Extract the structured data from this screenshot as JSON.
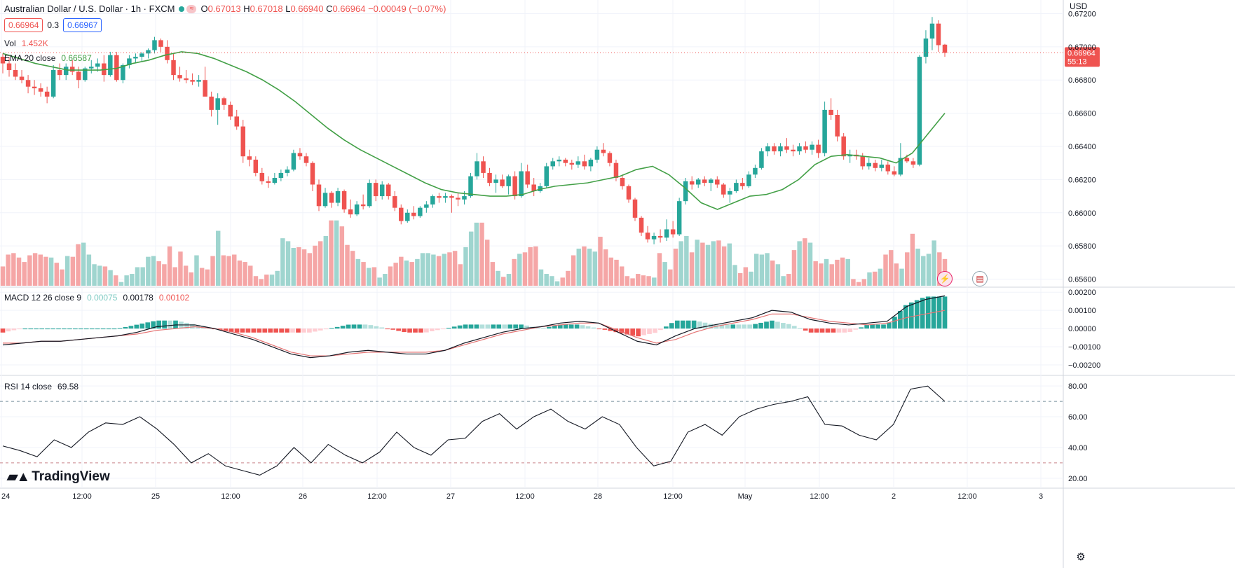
{
  "header": {
    "symbol": "Australian Dollar / U.S. Dollar · 1h · FXCM",
    "o_label": "O",
    "o_value": "0.67013",
    "h_label": "H",
    "h_value": "0.67018",
    "l_label": "L",
    "l_value": "0.66940",
    "c_label": "C",
    "c_value": "0.66964",
    "change": "−0.00049 (−0.07%)",
    "bid": "0.66964",
    "spread": "0.3",
    "ask": "0.66967"
  },
  "indicators": {
    "vol_label": "Vol",
    "vol_value": "1.452K",
    "ema_label": "EMA 20 close",
    "ema_value": "0.66587",
    "macd_label": "MACD 12 26 close 9",
    "macd_hist": "0.00075",
    "macd_line": "0.00178",
    "macd_signal": "0.00102",
    "rsi_label": "RSI 14 close",
    "rsi_value": "69.58"
  },
  "axis": {
    "unit": "USD",
    "current_price": "0.66964",
    "countdown": "55:13",
    "price_ticks": [
      "0.67200",
      "0.67000",
      "0.66800",
      "0.66600",
      "0.66400",
      "0.66200",
      "0.66000",
      "0.65800",
      "0.65600"
    ],
    "macd_ticks": [
      "0.00200",
      "0.00100",
      "0.00000",
      "−0.00100",
      "−0.00200"
    ],
    "rsi_ticks": [
      "80.00",
      "60.00",
      "40.00",
      "20.00"
    ],
    "time_ticks": [
      "24",
      "12:00",
      "25",
      "12:00",
      "26",
      "12:00",
      "27",
      "12:00",
      "28",
      "12:00",
      "May",
      "12:00",
      "2",
      "12:00",
      "3"
    ]
  },
  "brand": {
    "name": "TradingView"
  },
  "colors": {
    "up": "#26a69a",
    "down": "#ef5350",
    "ema": "#43a047",
    "macd": "#131722",
    "signal": "#e57373"
  },
  "chart_data": {
    "type": "candlestick",
    "title": "Australian Dollar / U.S. Dollar · 1h · FXCM",
    "ylabel": "USD",
    "ylim": [
      0.6556,
      0.6724
    ],
    "candles_ohlc": [
      [
        0.6694,
        0.6696,
        0.6684,
        0.669
      ],
      [
        0.669,
        0.6694,
        0.6682,
        0.6686
      ],
      [
        0.6686,
        0.669,
        0.668,
        0.6682
      ],
      [
        0.6682,
        0.6686,
        0.6678,
        0.668
      ],
      [
        0.668,
        0.6683,
        0.6672,
        0.6676
      ],
      [
        0.6676,
        0.668,
        0.6671,
        0.6675
      ],
      [
        0.6675,
        0.6678,
        0.667,
        0.6673
      ],
      [
        0.6673,
        0.6676,
        0.6666,
        0.667
      ],
      [
        0.667,
        0.6689,
        0.6669,
        0.6686
      ],
      [
        0.6686,
        0.669,
        0.668,
        0.6683
      ],
      [
        0.6683,
        0.669,
        0.668,
        0.6688
      ],
      [
        0.6688,
        0.6692,
        0.6683,
        0.6685
      ],
      [
        0.6685,
        0.6688,
        0.6675,
        0.668
      ],
      [
        0.668,
        0.6688,
        0.6679,
        0.6687
      ],
      [
        0.6687,
        0.6692,
        0.6684,
        0.6688
      ],
      [
        0.6688,
        0.6693,
        0.6685,
        0.669
      ],
      [
        0.669,
        0.6695,
        0.6679,
        0.6683
      ],
      [
        0.6683,
        0.6697,
        0.6682,
        0.6695
      ],
      [
        0.6695,
        0.6697,
        0.6679,
        0.668
      ],
      [
        0.668,
        0.669,
        0.6678,
        0.6689
      ],
      [
        0.6689,
        0.6695,
        0.6687,
        0.6693
      ],
      [
        0.6693,
        0.6696,
        0.669,
        0.6694
      ],
      [
        0.6694,
        0.6697,
        0.6691,
        0.6696
      ],
      [
        0.6696,
        0.6699,
        0.6693,
        0.6698
      ],
      [
        0.6698,
        0.6706,
        0.6696,
        0.6704
      ],
      [
        0.6704,
        0.6705,
        0.6697,
        0.67
      ],
      [
        0.67,
        0.6704,
        0.669,
        0.6692
      ],
      [
        0.6692,
        0.6696,
        0.668,
        0.6683
      ],
      [
        0.6683,
        0.6688,
        0.6679,
        0.6681
      ],
      [
        0.6681,
        0.6686,
        0.6678,
        0.668
      ],
      [
        0.668,
        0.6684,
        0.6677,
        0.6679
      ],
      [
        0.6679,
        0.6683,
        0.6676,
        0.668
      ],
      [
        0.668,
        0.6688,
        0.6678,
        0.667
      ],
      [
        0.667,
        0.6673,
        0.6658,
        0.6662
      ],
      [
        0.6662,
        0.6672,
        0.6653,
        0.6669
      ],
      [
        0.6669,
        0.667,
        0.6662,
        0.6665
      ],
      [
        0.6665,
        0.6667,
        0.6656,
        0.6658
      ],
      [
        0.6658,
        0.6662,
        0.665,
        0.6652
      ],
      [
        0.6652,
        0.6656,
        0.663,
        0.6634
      ],
      [
        0.6634,
        0.6638,
        0.6628,
        0.6632
      ],
      [
        0.6632,
        0.6634,
        0.6622,
        0.6624
      ],
      [
        0.6624,
        0.6627,
        0.6617,
        0.6619
      ],
      [
        0.6619,
        0.6622,
        0.6615,
        0.6618
      ],
      [
        0.6618,
        0.6624,
        0.6617,
        0.6621
      ],
      [
        0.6621,
        0.6626,
        0.6619,
        0.6624
      ],
      [
        0.6624,
        0.6628,
        0.6622,
        0.6626
      ],
      [
        0.6626,
        0.6638,
        0.6625,
        0.6636
      ],
      [
        0.6636,
        0.6639,
        0.6632,
        0.6634
      ],
      [
        0.6634,
        0.6636,
        0.6628,
        0.663
      ],
      [
        0.663,
        0.6631,
        0.6613,
        0.6617
      ],
      [
        0.6617,
        0.662,
        0.6601,
        0.6604
      ],
      [
        0.6604,
        0.6615,
        0.6603,
        0.6612
      ],
      [
        0.6612,
        0.6613,
        0.6603,
        0.6606
      ],
      [
        0.6606,
        0.6615,
        0.6604,
        0.6613
      ],
      [
        0.6613,
        0.6614,
        0.66,
        0.6602
      ],
      [
        0.6602,
        0.6608,
        0.6597,
        0.6599
      ],
      [
        0.6599,
        0.6607,
        0.6598,
        0.6605
      ],
      [
        0.6605,
        0.6611,
        0.6602,
        0.6604
      ],
      [
        0.6604,
        0.662,
        0.6603,
        0.6618
      ],
      [
        0.6618,
        0.662,
        0.6607,
        0.661
      ],
      [
        0.661,
        0.6619,
        0.6608,
        0.6617
      ],
      [
        0.6617,
        0.6618,
        0.6608,
        0.661
      ],
      [
        0.661,
        0.6613,
        0.6601,
        0.6603
      ],
      [
        0.6603,
        0.6605,
        0.6593,
        0.6595
      ],
      [
        0.6595,
        0.6602,
        0.6594,
        0.66
      ],
      [
        0.66,
        0.6604,
        0.6596,
        0.6598
      ],
      [
        0.6598,
        0.6604,
        0.6597,
        0.6603
      ],
      [
        0.6603,
        0.6607,
        0.66,
        0.6605
      ],
      [
        0.6605,
        0.6611,
        0.6603,
        0.661
      ],
      [
        0.661,
        0.6612,
        0.6606,
        0.6609
      ],
      [
        0.6609,
        0.6612,
        0.6606,
        0.661
      ],
      [
        0.661,
        0.6611,
        0.66,
        0.6609
      ],
      [
        0.6609,
        0.6612,
        0.6604,
        0.6608
      ],
      [
        0.6608,
        0.6613,
        0.6605,
        0.661
      ],
      [
        0.661,
        0.6624,
        0.6609,
        0.6622
      ],
      [
        0.6622,
        0.6636,
        0.662,
        0.6631
      ],
      [
        0.6631,
        0.6634,
        0.6621,
        0.6624
      ],
      [
        0.6624,
        0.6627,
        0.6616,
        0.6618
      ],
      [
        0.6618,
        0.6623,
        0.6612,
        0.662
      ],
      [
        0.662,
        0.6623,
        0.6615,
        0.6616
      ],
      [
        0.6616,
        0.6623,
        0.6611,
        0.6622
      ],
      [
        0.6622,
        0.6625,
        0.6608,
        0.661
      ],
      [
        0.661,
        0.663,
        0.6609,
        0.6625
      ],
      [
        0.6625,
        0.6629,
        0.6615,
        0.6617
      ],
      [
        0.6617,
        0.6621,
        0.661,
        0.6613
      ],
      [
        0.6613,
        0.6618,
        0.6612,
        0.6616
      ],
      [
        0.6616,
        0.663,
        0.6615,
        0.6628
      ],
      [
        0.6628,
        0.6633,
        0.6626,
        0.6631
      ],
      [
        0.6631,
        0.6634,
        0.6628,
        0.6632
      ],
      [
        0.6632,
        0.6633,
        0.6628,
        0.663
      ],
      [
        0.663,
        0.6632,
        0.6626,
        0.6629
      ],
      [
        0.6629,
        0.6634,
        0.6627,
        0.6631
      ],
      [
        0.6631,
        0.6635,
        0.6626,
        0.6628
      ],
      [
        0.6628,
        0.6633,
        0.6625,
        0.6632
      ],
      [
        0.6632,
        0.664,
        0.663,
        0.6638
      ],
      [
        0.6638,
        0.6642,
        0.6634,
        0.6636
      ],
      [
        0.6636,
        0.6637,
        0.6628,
        0.663
      ],
      [
        0.663,
        0.6632,
        0.6619,
        0.6621
      ],
      [
        0.6621,
        0.6623,
        0.6614,
        0.6616
      ],
      [
        0.6616,
        0.6617,
        0.6606,
        0.6608
      ],
      [
        0.6608,
        0.6609,
        0.6595,
        0.6597
      ],
      [
        0.6597,
        0.6598,
        0.6586,
        0.6588
      ],
      [
        0.6588,
        0.6592,
        0.6582,
        0.6584
      ],
      [
        0.6584,
        0.6588,
        0.6581,
        0.6586
      ],
      [
        0.6586,
        0.659,
        0.6582,
        0.6585
      ],
      [
        0.6585,
        0.6596,
        0.6583,
        0.659
      ],
      [
        0.659,
        0.6595,
        0.6585,
        0.6587
      ],
      [
        0.6587,
        0.6609,
        0.6586,
        0.6607
      ],
      [
        0.6607,
        0.6621,
        0.6605,
        0.6619
      ],
      [
        0.6619,
        0.6622,
        0.6614,
        0.6617
      ],
      [
        0.6617,
        0.6621,
        0.6615,
        0.662
      ],
      [
        0.662,
        0.6622,
        0.6616,
        0.6618
      ],
      [
        0.6618,
        0.6621,
        0.6613,
        0.662
      ],
      [
        0.662,
        0.6622,
        0.6615,
        0.6617
      ],
      [
        0.6617,
        0.6618,
        0.6609,
        0.6611
      ],
      [
        0.6611,
        0.6615,
        0.6606,
        0.6613
      ],
      [
        0.6613,
        0.662,
        0.6612,
        0.6618
      ],
      [
        0.6618,
        0.6621,
        0.6614,
        0.6616
      ],
      [
        0.6616,
        0.6625,
        0.6615,
        0.6623
      ],
      [
        0.6623,
        0.6629,
        0.6621,
        0.6627
      ],
      [
        0.6627,
        0.6639,
        0.6626,
        0.6637
      ],
      [
        0.6637,
        0.6642,
        0.6634,
        0.664
      ],
      [
        0.664,
        0.6642,
        0.6635,
        0.6637
      ],
      [
        0.6637,
        0.6642,
        0.6634,
        0.664
      ],
      [
        0.664,
        0.6645,
        0.6636,
        0.6638
      ],
      [
        0.6638,
        0.6641,
        0.6634,
        0.6637
      ],
      [
        0.6637,
        0.6642,
        0.6635,
        0.664
      ],
      [
        0.664,
        0.6643,
        0.6636,
        0.6638
      ],
      [
        0.6638,
        0.6643,
        0.6635,
        0.6641
      ],
      [
        0.6641,
        0.6644,
        0.6633,
        0.6636
      ],
      [
        0.6636,
        0.6667,
        0.6634,
        0.6662
      ],
      [
        0.6662,
        0.6669,
        0.6656,
        0.6659
      ],
      [
        0.6659,
        0.6662,
        0.6643,
        0.6646
      ],
      [
        0.6646,
        0.6648,
        0.6632,
        0.6634
      ],
      [
        0.6634,
        0.6638,
        0.663,
        0.6635
      ],
      [
        0.6635,
        0.6638,
        0.6632,
        0.6634
      ],
      [
        0.6634,
        0.6636,
        0.6626,
        0.6628
      ],
      [
        0.6628,
        0.6633,
        0.6626,
        0.663
      ],
      [
        0.663,
        0.6632,
        0.6625,
        0.6627
      ],
      [
        0.6627,
        0.6632,
        0.6625,
        0.6629
      ],
      [
        0.6629,
        0.6631,
        0.6623,
        0.6625
      ],
      [
        0.6625,
        0.6628,
        0.6622,
        0.6623
      ],
      [
        0.6623,
        0.6642,
        0.6622,
        0.6633
      ],
      [
        0.6633,
        0.6635,
        0.663,
        0.6631
      ],
      [
        0.6631,
        0.6633,
        0.6627,
        0.6629
      ],
      [
        0.6629,
        0.6695,
        0.6628,
        0.6694
      ],
      [
        0.6694,
        0.671,
        0.669,
        0.6705
      ],
      [
        0.6705,
        0.6718,
        0.6698,
        0.6714
      ],
      [
        0.6714,
        0.6716,
        0.6697,
        0.6701
      ],
      [
        0.67013,
        0.67018,
        0.6694,
        0.66964
      ]
    ],
    "ema20": [
      0.6696,
      0.6693,
      0.669,
      0.6688,
      0.6686,
      0.6686,
      0.6686,
      0.6687,
      0.669,
      0.6692,
      0.6695,
      0.6697,
      0.6696,
      0.6693,
      0.6689,
      0.6685,
      0.668,
      0.6674,
      0.6667,
      0.6659,
      0.6651,
      0.6644,
      0.6638,
      0.6633,
      0.6628,
      0.6623,
      0.6618,
      0.6614,
      0.6612,
      0.6611,
      0.661,
      0.661,
      0.6611,
      0.6614,
      0.6616,
      0.6617,
      0.6618,
      0.662,
      0.6622,
      0.6626,
      0.6628,
      0.6623,
      0.6615,
      0.6606,
      0.6602,
      0.6606,
      0.661,
      0.6611,
      0.6614,
      0.662,
      0.6629,
      0.6634,
      0.6635,
      0.6634,
      0.6633,
      0.663,
      0.6636,
      0.6648,
      0.666
    ],
    "volume": [
      26,
      42,
      44,
      38,
      32,
      41,
      44,
      42,
      39,
      38,
      31,
      22,
      40,
      39,
      56,
      58,
      42,
      29,
      27,
      26,
      21,
      14,
      5,
      14,
      16,
      25,
      25,
      39,
      40,
      33,
      29,
      53,
      25,
      46,
      27,
      18,
      41,
      24,
      22,
      40,
      74,
      41,
      40,
      42,
      34,
      32,
      27,
      13,
      9,
      15,
      15,
      20,
      64,
      60,
      51,
      52,
      49,
      44,
      54,
      60,
      67,
      88,
      88,
      80,
      55,
      47,
      36,
      32,
      24,
      25,
      11,
      16,
      26,
      31,
      39,
      34,
      32,
      36,
      44,
      44,
      42,
      40,
      43,
      45,
      47,
      29,
      52,
      73,
      85,
      85,
      62,
      32,
      20,
      12,
      16,
      36,
      43,
      45,
      52,
      53,
      22,
      16,
      13,
      6,
      11,
      20,
      41,
      50,
      53,
      50,
      46,
      66,
      49,
      38,
      35,
      26,
      13,
      10,
      16,
      14,
      13,
      11,
      44,
      32,
      22,
      50,
      60,
      67,
      45,
      62,
      58,
      55,
      60,
      61,
      53,
      57,
      28,
      17,
      25,
      19,
      43,
      42,
      44,
      34,
      29,
      13,
      16,
      48,
      60,
      64,
      58,
      33,
      30,
      36,
      29,
      35,
      38,
      36,
      9,
      5,
      9,
      18,
      19,
      23,
      42,
      48,
      30,
      23,
      45,
      70,
      50,
      40,
      43,
      61,
      45,
      36
    ],
    "macd_line_series": [
      -0.0009,
      -0.0008,
      -0.0007,
      -0.0007,
      -0.0006,
      -0.0005,
      -0.0004,
      -0.0002,
      0.0001,
      0.0002,
      0.0002,
      0.0,
      -0.0003,
      -0.0006,
      -0.001,
      -0.0014,
      -0.0016,
      -0.0015,
      -0.0013,
      -0.0012,
      -0.0013,
      -0.0014,
      -0.0014,
      -0.0012,
      -0.0008,
      -0.0005,
      -0.0002,
      0.0,
      0.0001,
      0.0003,
      0.0004,
      0.0003,
      -0.0002,
      -0.0007,
      -0.0009,
      -0.0004,
      0.0,
      0.0002,
      0.0004,
      0.0006,
      0.001,
      0.0009,
      0.0005,
      0.0003,
      0.0002,
      0.0003,
      0.0004,
      0.0012,
      0.0016,
      0.0018
    ],
    "macd_signal_series": [
      -0.0008,
      -0.0008,
      -0.0007,
      -0.0007,
      -0.0006,
      -0.0005,
      -0.0004,
      -0.0003,
      -0.0001,
      0.0,
      0.0001,
      0.0,
      -0.0002,
      -0.0005,
      -0.0009,
      -0.0013,
      -0.0015,
      -0.0015,
      -0.0014,
      -0.0013,
      -0.0013,
      -0.0013,
      -0.0013,
      -0.0012,
      -0.0009,
      -0.0006,
      -0.0003,
      -0.0001,
      0.0001,
      0.0002,
      0.0003,
      0.0003,
      -0.0001,
      -0.0005,
      -0.0008,
      -0.0006,
      -0.0002,
      0.0001,
      0.0003,
      0.0005,
      0.0008,
      0.0008,
      0.0006,
      0.0004,
      0.0003,
      0.0002,
      0.0003,
      0.0006,
      0.0008,
      0.001
    ],
    "rsi_series": [
      41,
      38,
      34,
      45,
      40,
      50,
      56,
      55,
      60,
      52,
      42,
      30,
      36,
      28,
      25,
      22,
      28,
      40,
      30,
      42,
      35,
      30,
      37,
      50,
      40,
      35,
      45,
      46,
      57,
      62,
      52,
      60,
      65,
      57,
      52,
      60,
      55,
      40,
      28,
      31,
      50,
      55,
      48,
      60,
      65,
      68,
      70,
      73,
      55,
      54,
      48,
      45,
      55,
      78,
      80,
      70
    ],
    "rsi_levels": [
      70,
      30
    ]
  }
}
